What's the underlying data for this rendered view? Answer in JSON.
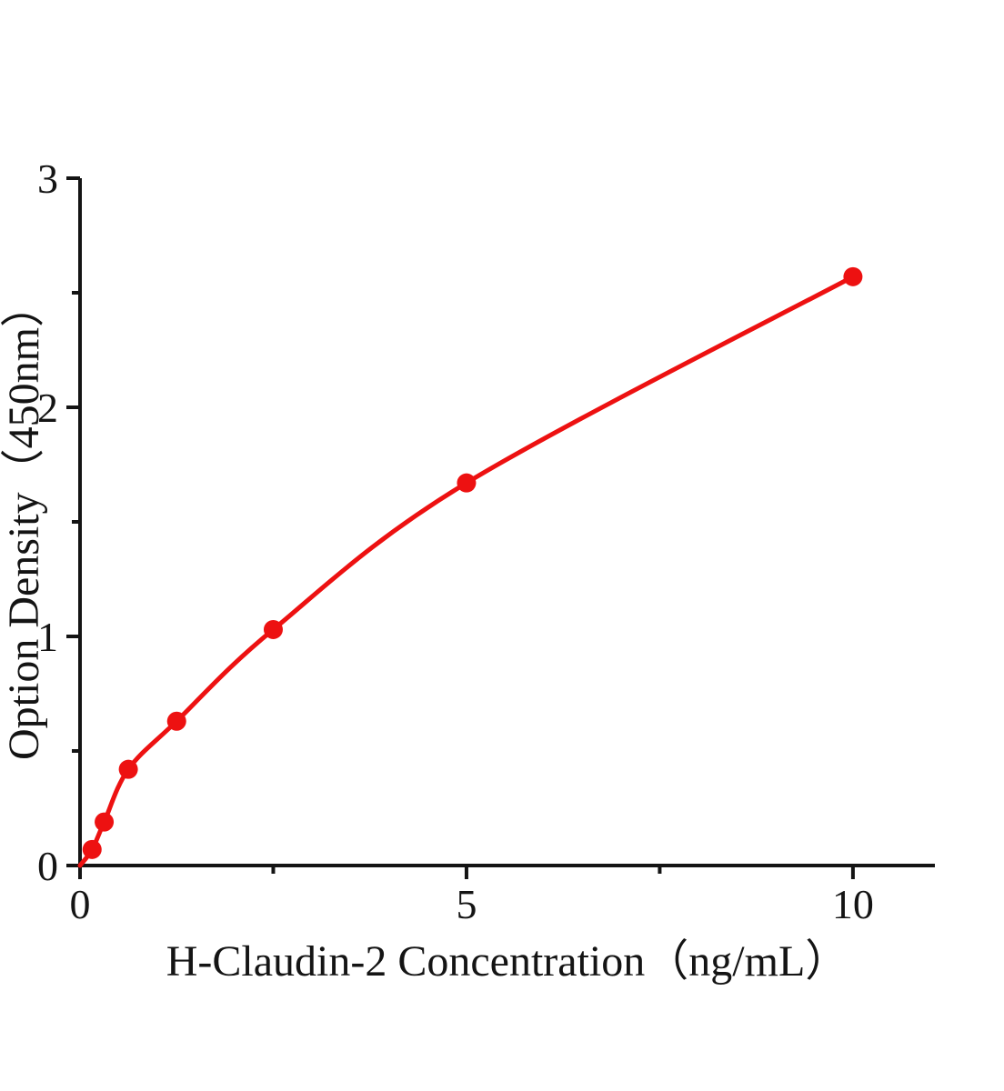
{
  "chart_data": {
    "type": "scatter",
    "title": "",
    "xlabel": "H-Claudin-2 Concentration（ng/mL）",
    "ylabel": "Option Density（450nm）",
    "x": [
      0.156,
      0.3125,
      0.625,
      1.25,
      2.5,
      5,
      10
    ],
    "y": [
      0.07,
      0.19,
      0.42,
      0.63,
      1.03,
      1.67,
      2.57
    ],
    "curve_extends_to_origin": true,
    "curve_origin": [
      0,
      0
    ],
    "xlim": [
      0,
      11.06
    ],
    "ylim": [
      0,
      3
    ],
    "x_ticks_major": [
      0,
      5,
      10
    ],
    "x_ticks_minor": [
      2.5,
      7.5
    ],
    "y_ticks_major": [
      0,
      1,
      2,
      3
    ],
    "y_ticks_minor": [
      0.5,
      1.5,
      2.5
    ],
    "grid": false,
    "legend": false,
    "marker": "circle",
    "series_color": "#ed1111",
    "axis_color": "#141414"
  }
}
